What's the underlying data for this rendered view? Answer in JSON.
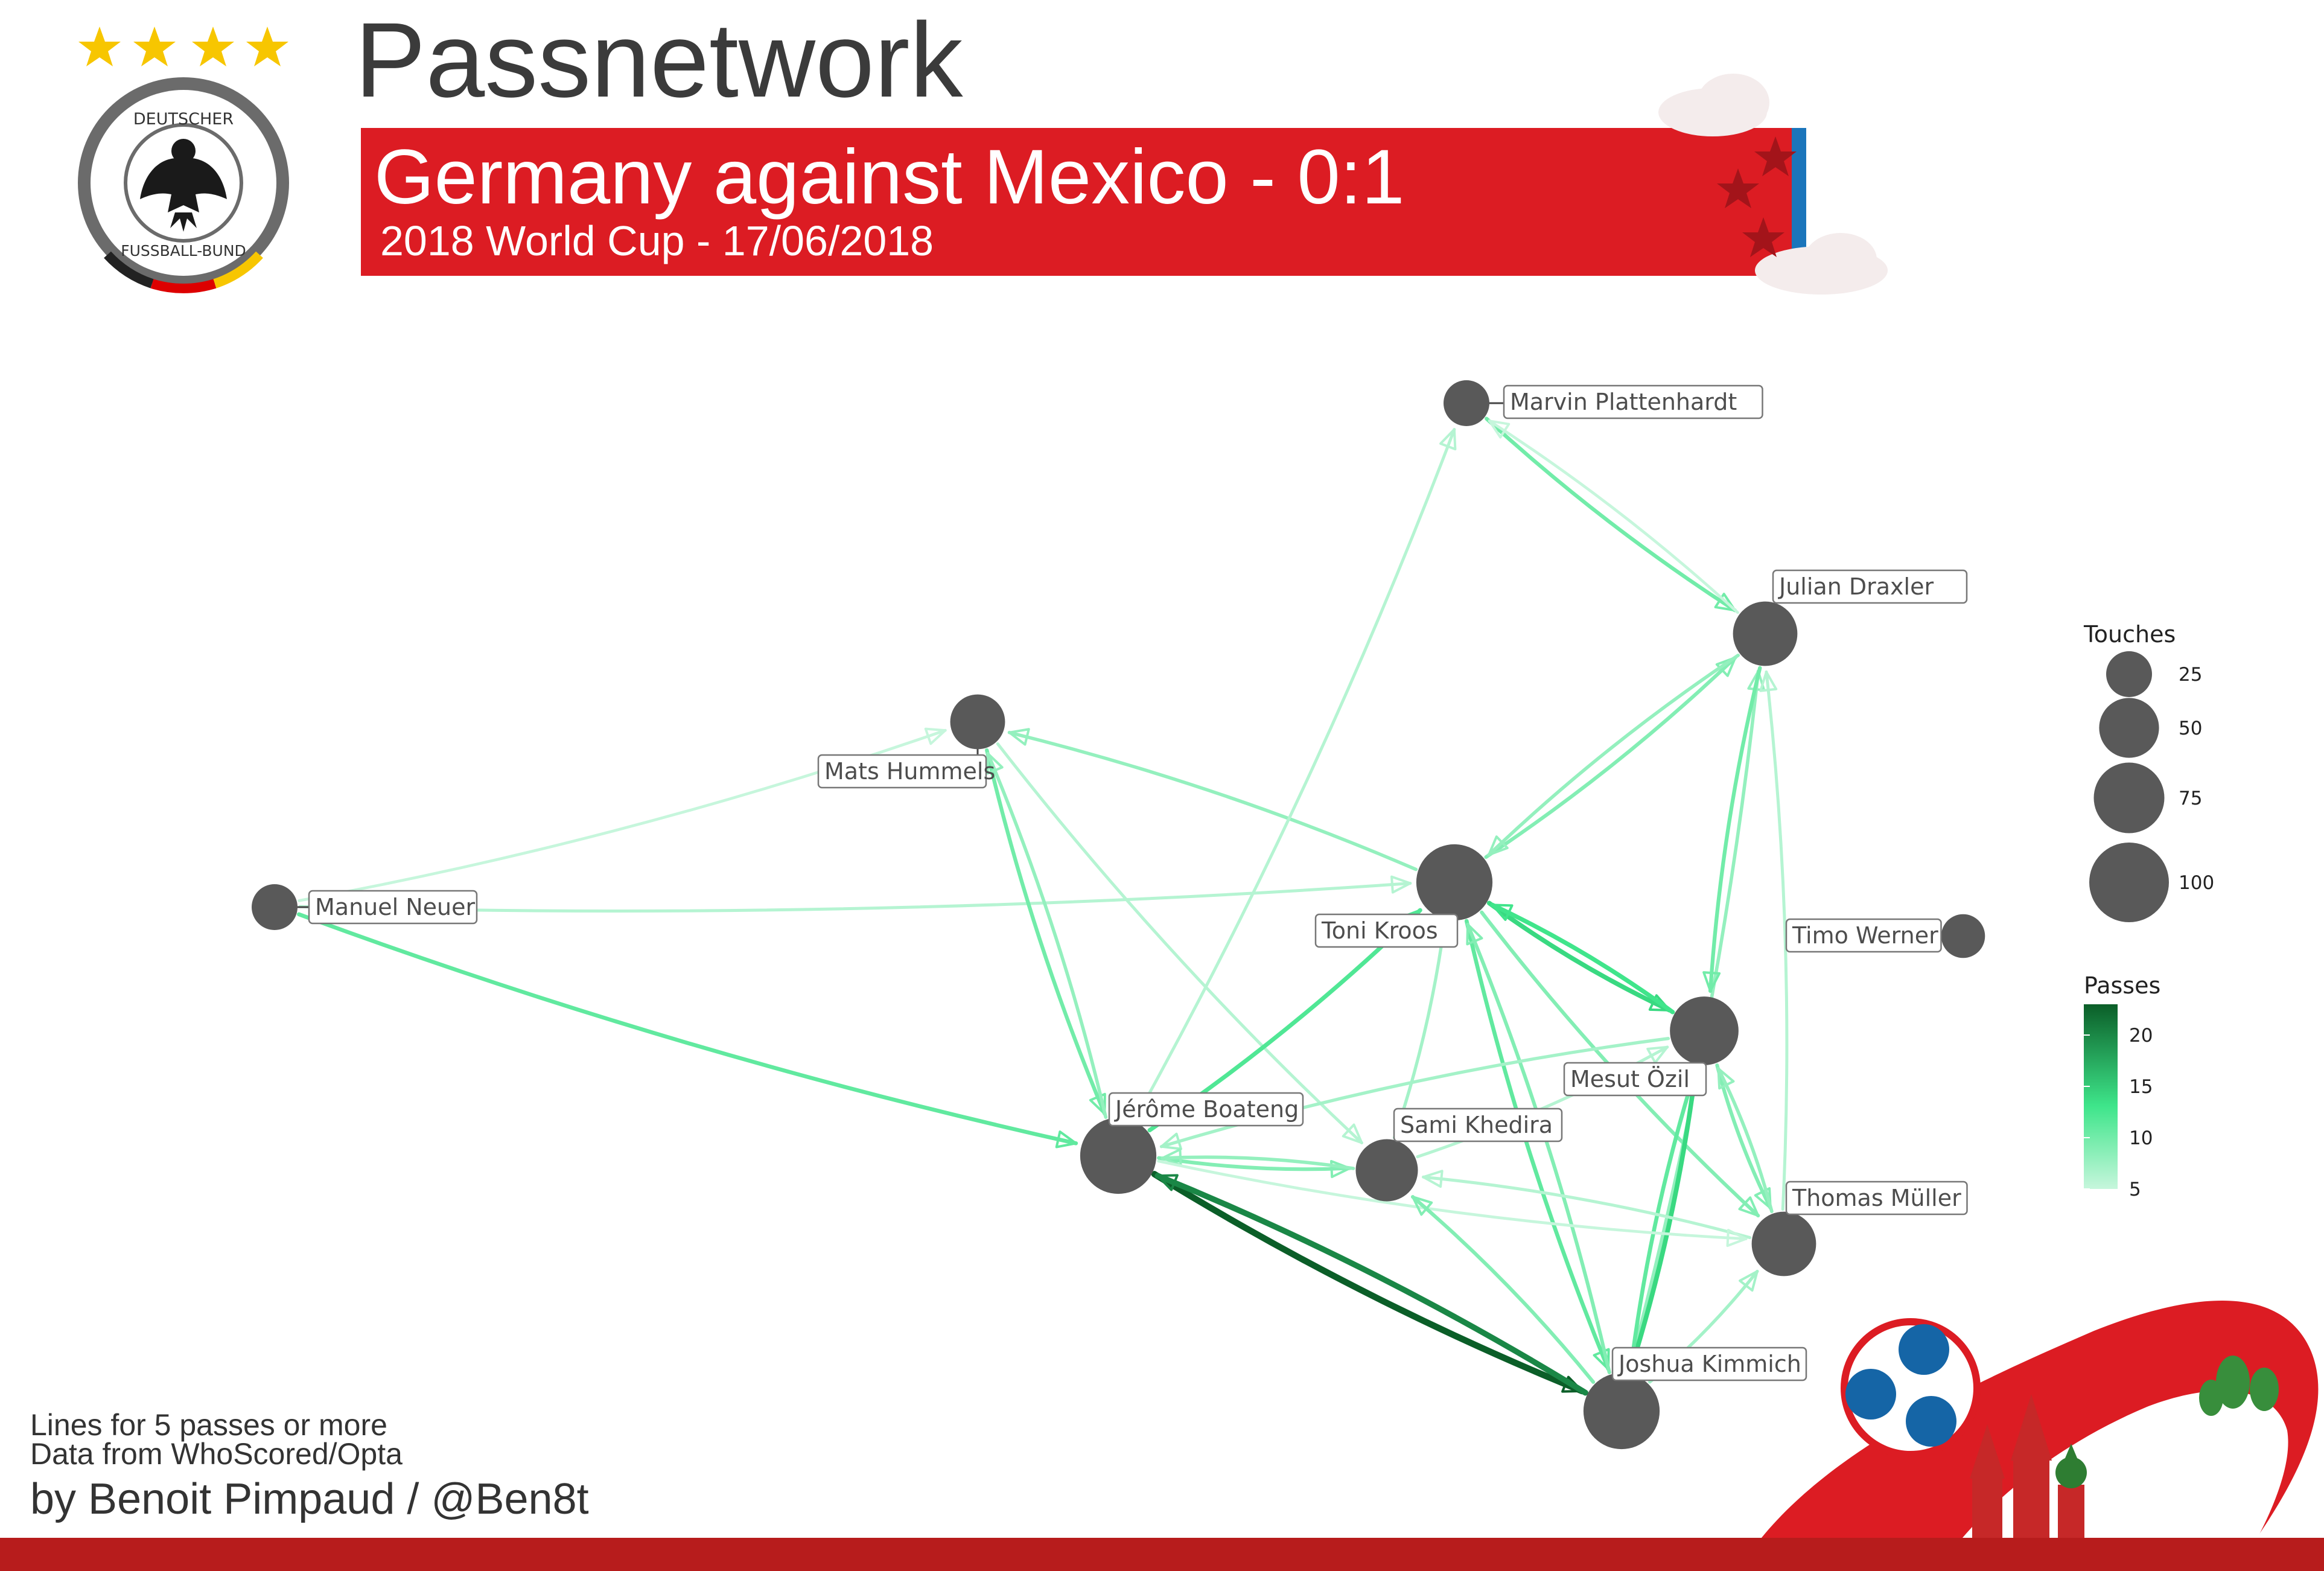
{
  "header": {
    "title": "Passnetwork",
    "headline": "Germany against Mexico - 0:1",
    "subline": "2018 World Cup - 17/06/2018",
    "badge_top_text": "DEUTSCHER",
    "badge_bottom_text": "FUSSBALL-BUND"
  },
  "footer": {
    "note_lines": "Lines for 5 passes or more",
    "note_source": "Data from WhoScored/Opta",
    "byline": "by Benoit Pimpaud / @Ben8t"
  },
  "colors": {
    "banner_red": "#dc1c23",
    "banner_blue": "#1b75bb",
    "node": "#595959",
    "star": "#f7c600",
    "pass_low": "#c6f6dc",
    "pass_high": "#0b5e28"
  },
  "chart_data": {
    "type": "network",
    "legend": {
      "touches_title": "Touches",
      "touches_values": [
        25,
        50,
        75,
        100
      ],
      "passes_title": "Passes",
      "passes_ticks": [
        5,
        10,
        15,
        20
      ],
      "passes_range": [
        5,
        23
      ]
    },
    "nodes": [
      {
        "id": "neuer",
        "name": "Manuel Neuer",
        "touches": 25
      },
      {
        "id": "hummels",
        "name": "Mats Hummels",
        "touches": 40
      },
      {
        "id": "plattenhardt",
        "name": "Marvin Plattenhardt",
        "touches": 25
      },
      {
        "id": "draxler",
        "name": "Julian Draxler",
        "touches": 60
      },
      {
        "id": "kroos",
        "name": "Toni Kroos",
        "touches": 90
      },
      {
        "id": "werner",
        "name": "Timo Werner",
        "touches": 22
      },
      {
        "id": "ozil",
        "name": "Mesut Özil",
        "touches": 70
      },
      {
        "id": "boateng",
        "name": "Jérôme Boateng",
        "touches": 90
      },
      {
        "id": "khedira",
        "name": "Sami Khedira",
        "touches": 55
      },
      {
        "id": "muller",
        "name": "Thomas Müller",
        "touches": 60
      },
      {
        "id": "kimmich",
        "name": "Joshua Kimmich",
        "touches": 90
      }
    ],
    "edges": [
      {
        "from": "neuer",
        "to": "hummels",
        "passes": 5
      },
      {
        "from": "neuer",
        "to": "kroos",
        "passes": 6
      },
      {
        "from": "neuer",
        "to": "boateng",
        "passes": 11
      },
      {
        "from": "hummels",
        "to": "boateng",
        "passes": 10
      },
      {
        "from": "boateng",
        "to": "hummels",
        "passes": 8
      },
      {
        "from": "hummels",
        "to": "khedira",
        "passes": 6
      },
      {
        "from": "kroos",
        "to": "hummels",
        "passes": 8
      },
      {
        "from": "boateng",
        "to": "plattenhardt",
        "passes": 6
      },
      {
        "from": "plattenhardt",
        "to": "draxler",
        "passes": 10
      },
      {
        "from": "draxler",
        "to": "plattenhardt",
        "passes": 5
      },
      {
        "from": "kroos",
        "to": "draxler",
        "passes": 9
      },
      {
        "from": "draxler",
        "to": "kroos",
        "passes": 8
      },
      {
        "from": "kimmich",
        "to": "draxler",
        "passes": 8
      },
      {
        "from": "draxler",
        "to": "ozil",
        "passes": 10
      },
      {
        "from": "muller",
        "to": "draxler",
        "passes": 6
      },
      {
        "from": "boateng",
        "to": "kroos",
        "passes": 12
      },
      {
        "from": "kroos",
        "to": "ozil",
        "passes": 14
      },
      {
        "from": "ozil",
        "to": "kroos",
        "passes": 13
      },
      {
        "from": "kroos",
        "to": "muller",
        "passes": 9
      },
      {
        "from": "kroos",
        "to": "kimmich",
        "passes": 11
      },
      {
        "from": "kimmich",
        "to": "kroos",
        "passes": 9
      },
      {
        "from": "khedira",
        "to": "kroos",
        "passes": 7
      },
      {
        "from": "ozil",
        "to": "boateng",
        "passes": 7
      },
      {
        "from": "boateng",
        "to": "khedira",
        "passes": 9
      },
      {
        "from": "khedira",
        "to": "boateng",
        "passes": 8
      },
      {
        "from": "boateng",
        "to": "kimmich",
        "passes": 23
      },
      {
        "from": "kimmich",
        "to": "boateng",
        "passes": 20
      },
      {
        "from": "kimmich",
        "to": "ozil",
        "passes": 14
      },
      {
        "from": "ozil",
        "to": "kimmich",
        "passes": 11
      },
      {
        "from": "ozil",
        "to": "muller",
        "passes": 9
      },
      {
        "from": "muller",
        "to": "ozil",
        "passes": 8
      },
      {
        "from": "muller",
        "to": "khedira",
        "passes": 6
      },
      {
        "from": "boateng",
        "to": "muller",
        "passes": 5
      },
      {
        "from": "kimmich",
        "to": "khedira",
        "passes": 9
      },
      {
        "from": "kimmich",
        "to": "muller",
        "passes": 7
      },
      {
        "from": "khedira",
        "to": "ozil",
        "passes": 6
      }
    ]
  }
}
